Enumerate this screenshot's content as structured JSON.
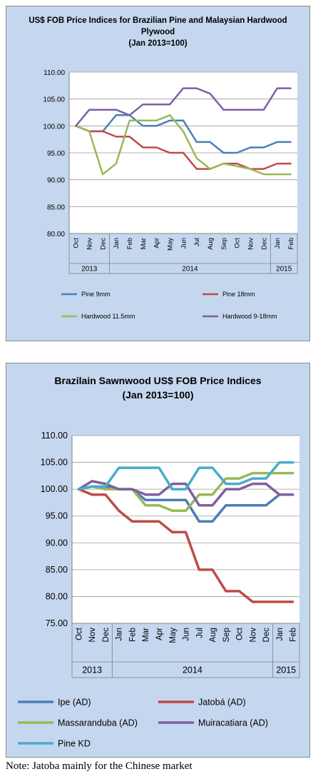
{
  "chart_data": [
    {
      "type": "line",
      "title": "US$ FOB Price Indices for Brazilian Pine and Malaysian Hardwood Plywood",
      "subtitle": "(Jan 2013=100)",
      "categories": [
        "Oct",
        "Nov",
        "Dec",
        "Jan",
        "Feb",
        "Mar",
        "Apr",
        "May",
        "Jun",
        "Jul",
        "Aug",
        "Sep",
        "Oct",
        "Nov",
        "Dec",
        "Jan",
        "Feb"
      ],
      "years": [
        {
          "label": "2013",
          "from": 0,
          "to": 2
        },
        {
          "label": "2014",
          "from": 3,
          "to": 14
        },
        {
          "label": "2015",
          "from": 15,
          "to": 16
        }
      ],
      "ylim": [
        80,
        110
      ],
      "yticks": [
        "80.00",
        "85.00",
        "90.00",
        "95.00",
        "100.00",
        "105.00",
        "110.00"
      ],
      "legend_position": "bottom",
      "series": [
        {
          "name": "Pine 9mm",
          "color": "#4a7ebb",
          "values": [
            100,
            99,
            99,
            102,
            102,
            100,
            100,
            101,
            101,
            97,
            97,
            95,
            95,
            96,
            96,
            97,
            97
          ]
        },
        {
          "name": "Pine 18mm",
          "color": "#be4b48",
          "values": [
            100,
            99,
            99,
            98,
            98,
            96,
            96,
            95,
            95,
            92,
            92,
            93,
            93,
            92,
            92,
            93,
            93
          ]
        },
        {
          "name": "Hardwood 11.5mm",
          "color": "#98b954",
          "values": [
            100,
            99,
            91,
            93,
            101,
            101,
            101,
            102,
            99,
            94,
            92,
            93,
            92.5,
            92,
            91,
            91,
            91
          ]
        },
        {
          "name": "Hardwood 9-18mm",
          "color": "#7d60a0",
          "values": [
            100,
            103,
            103,
            103,
            102,
            104,
            104,
            104,
            107,
            107,
            106,
            103,
            103,
            103,
            103,
            107,
            107
          ]
        }
      ]
    },
    {
      "type": "line",
      "title": "Brazilain Sawnwood US$ FOB Price Indices",
      "subtitle": "(Jan 2013=100)",
      "categories": [
        "Oct",
        "Nov",
        "Dec",
        "Jan",
        "Feb",
        "Mar",
        "Apr",
        "May",
        "Jun",
        "Jul",
        "Aug",
        "Sep",
        "Oct",
        "Nov",
        "Dec",
        "Jan",
        "Feb"
      ],
      "years": [
        {
          "label": "2013",
          "from": 0,
          "to": 2
        },
        {
          "label": "2014",
          "from": 3,
          "to": 14
        },
        {
          "label": "2015",
          "from": 15,
          "to": 16
        }
      ],
      "ylim": [
        75,
        110
      ],
      "yticks": [
        "75.00",
        "80.00",
        "85.00",
        "90.00",
        "95.00",
        "100.00",
        "105.00",
        "110.00"
      ],
      "legend_position": "bottom",
      "series": [
        {
          "name": "Ipe (AD)",
          "color": "#4a7ebb",
          "values": [
            100,
            100.5,
            100.5,
            100,
            100,
            98,
            98,
            98,
            98,
            94,
            94,
            97,
            97,
            97,
            97,
            99,
            99
          ]
        },
        {
          "name": "Jatobá (AD)",
          "color": "#be4b48",
          "values": [
            100,
            99,
            99,
            96,
            94,
            94,
            94,
            92,
            92,
            85,
            85,
            81,
            81,
            79,
            79,
            79,
            79
          ]
        },
        {
          "name": "Massaranduba (AD)",
          "color": "#98b954",
          "values": [
            100,
            100.5,
            100,
            100,
            100,
            97,
            97,
            96,
            96,
            99,
            99,
            102,
            102,
            103,
            103,
            103,
            103
          ]
        },
        {
          "name": "Muiracatiara (AD)",
          "color": "#7d60a0",
          "values": [
            100,
            101.5,
            101,
            100,
            100,
            99,
            99,
            101,
            101,
            97,
            97,
            100,
            100,
            101,
            101,
            99,
            99
          ]
        },
        {
          "name": "Pine KD",
          "color": "#4bacc6",
          "values": [
            100,
            100.5,
            100.5,
            104,
            104,
            104,
            104,
            100,
            100,
            104,
            104,
            101,
            101,
            102,
            102,
            105,
            105
          ]
        }
      ]
    }
  ],
  "note": "Note: Jatoba mainly for the Chinese market"
}
